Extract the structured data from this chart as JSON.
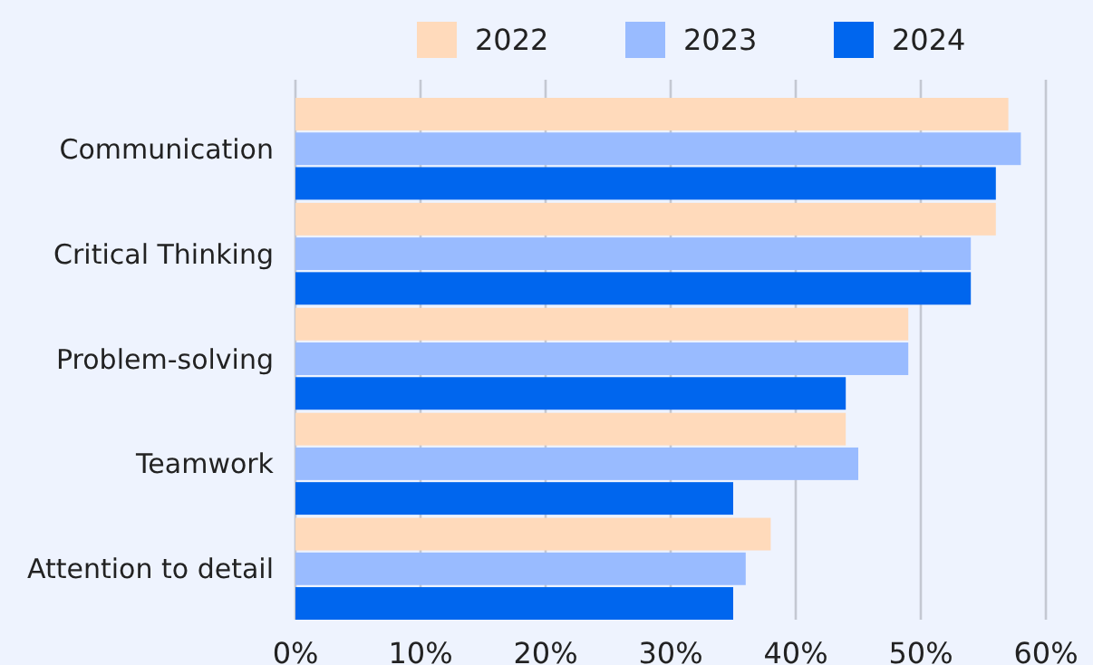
{
  "chart_data": {
    "type": "bar",
    "orientation": "horizontal",
    "categories": [
      "Communication",
      "Critical Thinking",
      "Problem-solving",
      "Teamwork",
      "Attention to detail"
    ],
    "series": [
      {
        "name": "2022",
        "color": "#ffdabb",
        "values": [
          57,
          56,
          49,
          44,
          38
        ]
      },
      {
        "name": "2023",
        "color": "#99bbff",
        "values": [
          58,
          54,
          49,
          45,
          36
        ]
      },
      {
        "name": "2024",
        "color": "#0066ee",
        "values": [
          56,
          54,
          44,
          35,
          35
        ]
      }
    ],
    "xlim": [
      0,
      60
    ],
    "xticks": [
      {
        "value": 0,
        "label": "0%"
      },
      {
        "value": 10,
        "label": "10%"
      },
      {
        "value": 20,
        "label": "20%"
      },
      {
        "value": 30,
        "label": "30%"
      },
      {
        "value": 40,
        "label": "40%"
      },
      {
        "value": 50,
        "label": "50%"
      },
      {
        "value": 60,
        "label": "60%"
      }
    ],
    "grid": "x",
    "legend": "top right"
  }
}
